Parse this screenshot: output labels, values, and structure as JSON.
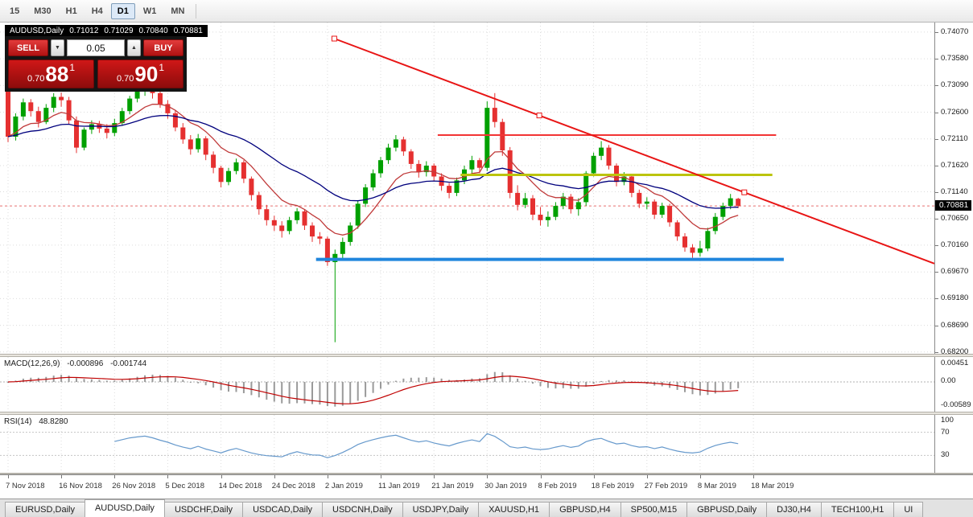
{
  "toolbar": {
    "timeframes": [
      "15",
      "M30",
      "H1",
      "H4",
      "D1",
      "W1",
      "MN"
    ],
    "selected": "D1"
  },
  "chart": {
    "title": "AUDUSD,Daily",
    "ohlc": {
      "open": "0.71012",
      "high": "0.71029",
      "low": "0.70840",
      "close": "0.70881"
    },
    "trade_panel": {
      "sell_label": "SELL",
      "buy_label": "BUY",
      "volume": "0.05",
      "sell_price": {
        "prefix": "0.70",
        "big": "88",
        "sup": "1"
      },
      "buy_price": {
        "prefix": "0.70",
        "big": "90",
        "sup": "1"
      }
    },
    "price_scale": {
      "labels": [
        "0.74070",
        "0.73580",
        "0.73090",
        "0.72600",
        "0.72110",
        "0.71620",
        "0.71140",
        "0.70650",
        "0.70160",
        "0.69670",
        "0.69180",
        "0.68690",
        "0.68200"
      ],
      "current": "0.70881"
    },
    "time_scale": {
      "labels": [
        "7 Nov 2018",
        "16 Nov 2018",
        "26 Nov 2018",
        "5 Dec 2018",
        "14 Dec 2018",
        "24 Dec 2018",
        "2 Jan 2019",
        "11 Jan 2019",
        "21 Jan 2019",
        "30 Jan 2019",
        "8 Feb 2019",
        "18 Feb 2019",
        "27 Feb 2019",
        "8 Mar 2019",
        "18 Mar 2019"
      ],
      "bars_per_label": 7
    }
  },
  "indicators": {
    "macd": {
      "label": "MACD(12,26,9)",
      "value_main": "-0.000896",
      "value_signal": "-0.001744",
      "scale_top": "0.00451",
      "scale_mid": "0.00",
      "scale_bottom": "-0.00589",
      "fast": 12,
      "slow": 26,
      "signal": 9
    },
    "rsi": {
      "label": "RSI(14)",
      "value": "48.8280",
      "period": 14,
      "scale": [
        "100",
        "70",
        "30"
      ],
      "levels": [
        70,
        30
      ]
    }
  },
  "tabs": {
    "items": [
      "EURUSD,Daily",
      "AUDUSD,Daily",
      "USDCHF,Daily",
      "USDCAD,Daily",
      "USDCNH,Daily",
      "USDJPY,Daily",
      "XAUUSD,H1",
      "GBPUSD,H4",
      "SP500,M15",
      "GBPUSD,Daily",
      "DJ30,H4",
      "TECH100,H1",
      "UI"
    ],
    "selected": "AUDUSD,Daily"
  },
  "chart_data": {
    "type": "candlestick",
    "symbol": "AUDUSD",
    "timeframe": "Daily",
    "colors": {
      "up": "#00a000",
      "down": "#e53030",
      "ma_fast": "#c03a3a",
      "ma_slow": "#00007d",
      "macd_hist": "#9a9a9a",
      "macd_signal": "#c00000",
      "rsi": "#6699cc",
      "bid_line": "#e87070",
      "grid": "#dcdcdc"
    },
    "moving_averages": [
      {
        "period": 9,
        "color_key": "ma_fast"
      },
      {
        "period": 26,
        "color_key": "ma_slow"
      }
    ],
    "overlays": {
      "hlines": [
        {
          "name": "resistance-line-red",
          "price": 0.7218,
          "from_bar": 56.5,
          "to_bar": 101,
          "color": "#f23434",
          "width": 2
        },
        {
          "name": "mid-line-yellow",
          "price": 0.7145,
          "from_bar": 59.5,
          "to_bar": 100.5,
          "color": "#bcc40e",
          "width": 3
        },
        {
          "name": "support-line-blue",
          "price": 0.699,
          "from_bar": 40.5,
          "to_bar": 102,
          "color": "#2086dd",
          "width": 4
        }
      ],
      "trendline": {
        "name": "descending-trendline",
        "from_bar": 42.9,
        "from_price": 0.7395,
        "to_bar": 96.8,
        "to_price": 0.7113,
        "extend_right": true,
        "color": "#e81515",
        "width": 2
      }
    },
    "candles": [
      [
        0.7298,
        0.731,
        0.7205,
        0.7215
      ],
      [
        0.7215,
        0.7258,
        0.7208,
        0.7252
      ],
      [
        0.7252,
        0.7285,
        0.7245,
        0.7278
      ],
      [
        0.7278,
        0.7284,
        0.7252,
        0.7262
      ],
      [
        0.7262,
        0.727,
        0.7232,
        0.7242
      ],
      [
        0.7242,
        0.7275,
        0.7238,
        0.7268
      ],
      [
        0.7268,
        0.7295,
        0.726,
        0.7288
      ],
      [
        0.7288,
        0.7296,
        0.727,
        0.7282
      ],
      [
        0.7282,
        0.7288,
        0.7238,
        0.7245
      ],
      [
        0.7245,
        0.7252,
        0.7185,
        0.7195
      ],
      [
        0.7195,
        0.7232,
        0.719,
        0.7228
      ],
      [
        0.7228,
        0.7245,
        0.722,
        0.7238
      ],
      [
        0.7238,
        0.7244,
        0.7222,
        0.723
      ],
      [
        0.723,
        0.7238,
        0.7212,
        0.7222
      ],
      [
        0.7222,
        0.7248,
        0.7216,
        0.724
      ],
      [
        0.724,
        0.7268,
        0.7235,
        0.7262
      ],
      [
        0.7262,
        0.729,
        0.7256,
        0.7285
      ],
      [
        0.7285,
        0.7305,
        0.7278,
        0.7298
      ],
      [
        0.7298,
        0.7318,
        0.729,
        0.7308
      ],
      [
        0.7308,
        0.7314,
        0.7285,
        0.7295
      ],
      [
        0.7295,
        0.7302,
        0.7268,
        0.7275
      ],
      [
        0.7275,
        0.7282,
        0.7248,
        0.7258
      ],
      [
        0.7258,
        0.7264,
        0.7225,
        0.7232
      ],
      [
        0.7232,
        0.724,
        0.7202,
        0.721
      ],
      [
        0.721,
        0.7218,
        0.7182,
        0.7192
      ],
      [
        0.7192,
        0.722,
        0.7186,
        0.7212
      ],
      [
        0.7212,
        0.7216,
        0.7172,
        0.7182
      ],
      [
        0.7182,
        0.7188,
        0.7148,
        0.7158
      ],
      [
        0.7158,
        0.7162,
        0.7122,
        0.7132
      ],
      [
        0.7132,
        0.7158,
        0.7126,
        0.7152
      ],
      [
        0.7152,
        0.7175,
        0.7146,
        0.7168
      ],
      [
        0.7168,
        0.7172,
        0.713,
        0.7138
      ],
      [
        0.7138,
        0.7142,
        0.7098,
        0.7108
      ],
      [
        0.7108,
        0.7114,
        0.7072,
        0.7082
      ],
      [
        0.7082,
        0.709,
        0.7052,
        0.7062
      ],
      [
        0.7062,
        0.707,
        0.7042,
        0.7052
      ],
      [
        0.7052,
        0.706,
        0.703,
        0.7042
      ],
      [
        0.7042,
        0.7068,
        0.7036,
        0.7062
      ],
      [
        0.7062,
        0.7084,
        0.7055,
        0.7078
      ],
      [
        0.7078,
        0.7082,
        0.7044,
        0.7052
      ],
      [
        0.7052,
        0.7058,
        0.7022,
        0.7032
      ],
      [
        0.7032,
        0.704,
        0.7018,
        0.7028
      ],
      [
        0.7028,
        0.7032,
        0.6978,
        0.6985
      ],
      [
        0.6985,
        0.7008,
        0.6838,
        0.7
      ],
      [
        0.7,
        0.703,
        0.6992,
        0.7022
      ],
      [
        0.7022,
        0.7058,
        0.7015,
        0.7052
      ],
      [
        0.7052,
        0.7098,
        0.7046,
        0.7092
      ],
      [
        0.7092,
        0.7128,
        0.7086,
        0.7122
      ],
      [
        0.7122,
        0.7155,
        0.7116,
        0.7148
      ],
      [
        0.7148,
        0.7178,
        0.714,
        0.7172
      ],
      [
        0.7172,
        0.7202,
        0.7165,
        0.7195
      ],
      [
        0.7195,
        0.7218,
        0.7188,
        0.721
      ],
      [
        0.721,
        0.7215,
        0.718,
        0.7188
      ],
      [
        0.7188,
        0.7192,
        0.7156,
        0.7165
      ],
      [
        0.7165,
        0.7172,
        0.714,
        0.715
      ],
      [
        0.715,
        0.717,
        0.7142,
        0.7162
      ],
      [
        0.7162,
        0.7166,
        0.7134,
        0.7142
      ],
      [
        0.7142,
        0.7148,
        0.7116,
        0.7125
      ],
      [
        0.7125,
        0.713,
        0.7102,
        0.7112
      ],
      [
        0.7112,
        0.714,
        0.7106,
        0.7135
      ],
      [
        0.7135,
        0.7162,
        0.7128,
        0.7155
      ],
      [
        0.7155,
        0.718,
        0.7148,
        0.7172
      ],
      [
        0.7172,
        0.7176,
        0.7148,
        0.7158
      ],
      [
        0.7158,
        0.728,
        0.7152,
        0.7268
      ],
      [
        0.7268,
        0.7295,
        0.7232,
        0.7242
      ],
      [
        0.7242,
        0.7248,
        0.718,
        0.719
      ],
      [
        0.719,
        0.7196,
        0.7102,
        0.7112
      ],
      [
        0.7112,
        0.7126,
        0.708,
        0.709
      ],
      [
        0.709,
        0.7112,
        0.7084,
        0.7102
      ],
      [
        0.7102,
        0.7108,
        0.7062,
        0.7072
      ],
      [
        0.7072,
        0.7086,
        0.7052,
        0.7062
      ],
      [
        0.7062,
        0.7078,
        0.705,
        0.7068
      ],
      [
        0.7068,
        0.7095,
        0.7062,
        0.7088
      ],
      [
        0.7088,
        0.7112,
        0.7082,
        0.7105
      ],
      [
        0.7105,
        0.711,
        0.7074,
        0.7082
      ],
      [
        0.7082,
        0.7102,
        0.707,
        0.7095
      ],
      [
        0.7095,
        0.7152,
        0.7088,
        0.7148
      ],
      [
        0.7148,
        0.7186,
        0.7142,
        0.718
      ],
      [
        0.718,
        0.7207,
        0.7172,
        0.7195
      ],
      [
        0.7195,
        0.72,
        0.7155,
        0.7162
      ],
      [
        0.7162,
        0.7166,
        0.7124,
        0.7132
      ],
      [
        0.7132,
        0.715,
        0.7126,
        0.7142
      ],
      [
        0.7142,
        0.7146,
        0.7104,
        0.7112
      ],
      [
        0.7112,
        0.7118,
        0.7084,
        0.7092
      ],
      [
        0.7092,
        0.7104,
        0.7082,
        0.7096
      ],
      [
        0.7096,
        0.71,
        0.7064,
        0.7072
      ],
      [
        0.7072,
        0.7094,
        0.7066,
        0.7088
      ],
      [
        0.7088,
        0.7092,
        0.705,
        0.7058
      ],
      [
        0.7058,
        0.7062,
        0.7024,
        0.7032
      ],
      [
        0.7032,
        0.7038,
        0.7004,
        0.7012
      ],
      [
        0.7012,
        0.7018,
        0.6993,
        0.7002
      ],
      [
        0.7002,
        0.7024,
        0.6995,
        0.701
      ],
      [
        0.701,
        0.7048,
        0.7005,
        0.7042
      ],
      [
        0.7042,
        0.7075,
        0.7036,
        0.7068
      ],
      [
        0.7068,
        0.7094,
        0.7062,
        0.7088
      ],
      [
        0.7088,
        0.711,
        0.7082,
        0.7102
      ],
      [
        0.71012,
        0.71029,
        0.7084,
        0.70881
      ]
    ]
  }
}
